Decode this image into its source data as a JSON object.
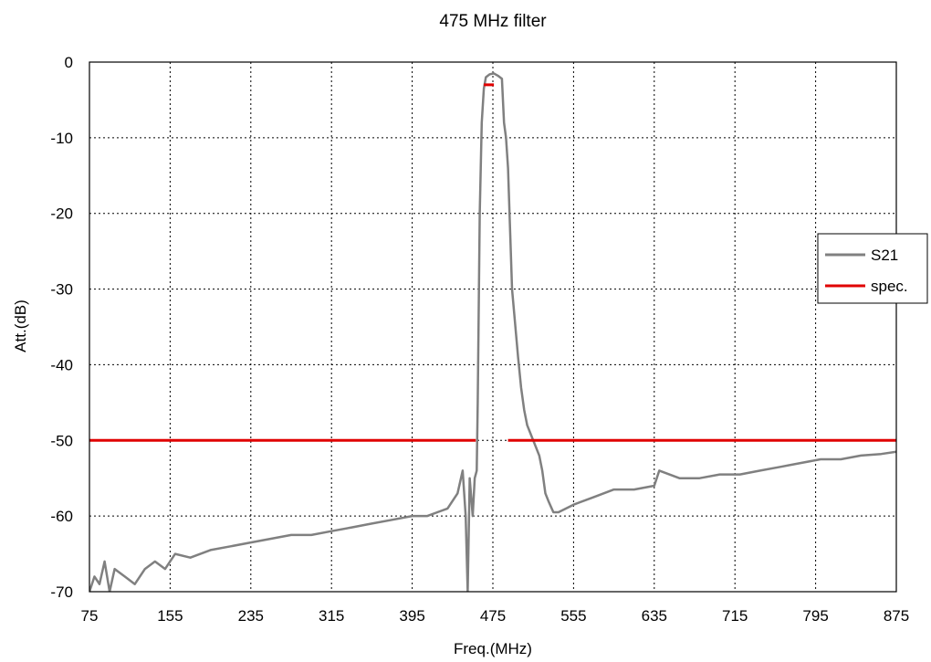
{
  "chart_data": {
    "type": "line",
    "title": "475 MHz filter",
    "xlabel": "Freq.(MHz)",
    "ylabel": "Att.(dB)",
    "xlim": [
      75,
      875
    ],
    "ylim": [
      -70,
      0
    ],
    "xticks": [
      "75",
      "155",
      "235",
      "315",
      "395",
      "475",
      "555",
      "635",
      "715",
      "795",
      "875"
    ],
    "yticks": [
      "0",
      "-10",
      "-20",
      "-30",
      "-40",
      "-50",
      "-60",
      "-70"
    ],
    "grid": true,
    "legend_position": "right",
    "series": [
      {
        "name": "S21",
        "color": "#808080",
        "x": [
          75,
          80,
          85,
          90,
          95,
          100,
          110,
          120,
          130,
          140,
          150,
          160,
          175,
          195,
          215,
          235,
          255,
          275,
          295,
          315,
          335,
          355,
          375,
          395,
          410,
          420,
          430,
          440,
          445,
          448,
          450,
          452,
          455,
          457,
          459,
          460,
          462,
          464,
          466,
          468,
          470,
          472,
          476,
          480,
          484,
          486,
          488,
          490,
          492,
          494,
          496,
          498,
          500,
          503,
          506,
          509,
          512,
          515,
          518,
          521,
          524,
          527,
          530,
          535,
          540,
          555,
          575,
          595,
          615,
          635,
          640,
          660,
          680,
          700,
          720,
          740,
          760,
          780,
          800,
          820,
          840,
          860,
          875
        ],
        "y": [
          -70,
          -68,
          -69,
          -66,
          -70,
          -67,
          -68,
          -69,
          -67,
          -66,
          -67,
          -65,
          -65.5,
          -64.5,
          -64,
          -63.5,
          -63,
          -62.5,
          -62.5,
          -62,
          -61.5,
          -61,
          -60.5,
          -60,
          -60,
          -59.5,
          -59,
          -57,
          -54,
          -60,
          -70,
          -55,
          -60,
          -55,
          -54,
          -45,
          -20,
          -8,
          -3.5,
          -2,
          -1.8,
          -1.6,
          -1.5,
          -1.8,
          -2.2,
          -8,
          -10,
          -14,
          -22,
          -30,
          -33,
          -36,
          -39,
          -43,
          -46,
          -48,
          -49,
          -50,
          -51,
          -52,
          -54,
          -57,
          -58,
          -59.5,
          -59.5,
          -58.5,
          -57.5,
          -56.5,
          -56.5,
          -56,
          -54,
          -55,
          -55,
          -54.5,
          -54.5,
          -54,
          -53.5,
          -53,
          -52.5,
          -52.5,
          -52,
          -51.8,
          -51.5
        ]
      },
      {
        "name": "spec.",
        "color": "#e00000",
        "segments": [
          {
            "x": [
              75,
              458
            ],
            "y": [
              -50,
              -50
            ]
          },
          {
            "x": [
              466,
              476
            ],
            "y": [
              -3,
              -3
            ]
          },
          {
            "x": [
              490,
              875
            ],
            "y": [
              -50,
              -50
            ]
          }
        ]
      }
    ]
  }
}
